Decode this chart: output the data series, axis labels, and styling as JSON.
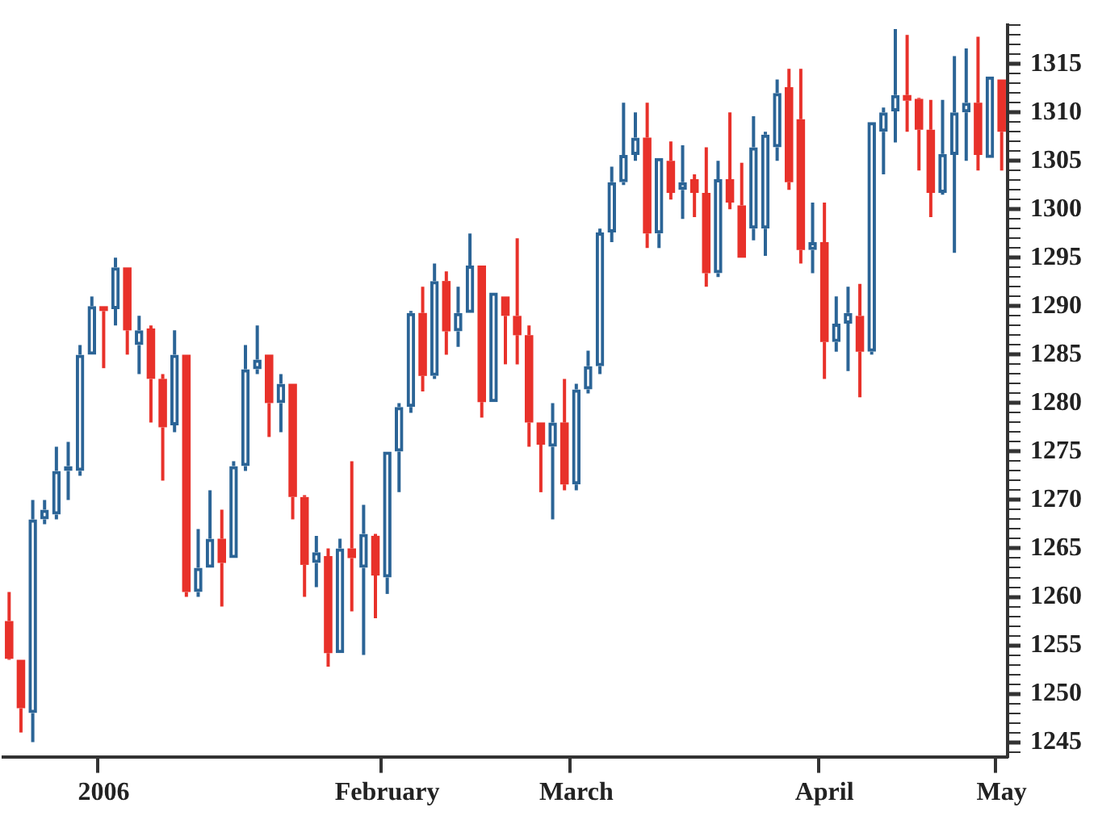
{
  "chart_data": {
    "type": "candlestick",
    "categories": [
      null,
      null,
      null,
      null,
      null,
      null,
      null,
      null,
      "2006",
      null,
      null,
      null,
      null,
      null,
      null,
      null,
      null,
      null,
      null,
      null,
      null,
      null,
      null,
      null,
      null,
      null,
      null,
      null,
      null,
      null,
      null,
      null,
      "February",
      null,
      null,
      null,
      null,
      null,
      null,
      null,
      null,
      null,
      null,
      null,
      null,
      null,
      null,
      null,
      "March",
      null,
      null,
      null,
      null,
      null,
      null,
      null,
      null,
      null,
      null,
      null,
      null,
      null,
      null,
      null,
      null,
      null,
      null,
      null,
      null,
      "April",
      null,
      null,
      null,
      null,
      null,
      null,
      null,
      null,
      null,
      null,
      null,
      null,
      null,
      null,
      "May"
    ],
    "ohlc": [
      [
        1257.5,
        1260.5,
        1253.5,
        1253.6
      ],
      [
        1253.5,
        1253.5,
        1246,
        1248.5
      ],
      [
        1248,
        1270,
        1245,
        1268
      ],
      [
        1268,
        1270,
        1267.5,
        1269
      ],
      [
        1268.5,
        1275.5,
        1268,
        1273
      ],
      [
        1273,
        1276,
        1270,
        1273.5
      ],
      [
        1273,
        1286,
        1272.5,
        1285
      ],
      [
        1285,
        1291,
        1285,
        1290
      ],
      [
        1290,
        1290,
        1283.6,
        1289.5
      ],
      [
        1289.7,
        1295,
        1288,
        1294
      ],
      [
        1294,
        1294,
        1285,
        1287.5
      ],
      [
        1286,
        1289,
        1283,
        1287.5
      ],
      [
        1287.7,
        1288,
        1278,
        1282.5
      ],
      [
        1282.5,
        1283,
        1272,
        1277.5
      ],
      [
        1277.7,
        1287.5,
        1277,
        1285
      ],
      [
        1285,
        1285,
        1260,
        1260.5
      ],
      [
        1260.5,
        1267,
        1260,
        1263
      ],
      [
        1263,
        1271,
        1263,
        1266
      ],
      [
        1266,
        1269,
        1259,
        1263.5
      ],
      [
        1264,
        1274,
        1264,
        1273.5
      ],
      [
        1273.5,
        1286,
        1273,
        1283.5
      ],
      [
        1283.5,
        1288,
        1283,
        1284.5
      ],
      [
        1285,
        1285,
        1276.5,
        1280
      ],
      [
        1280,
        1283,
        1277,
        1282
      ],
      [
        1282,
        1282,
        1268,
        1270.3
      ],
      [
        1270.3,
        1270.5,
        1260,
        1263.3
      ],
      [
        1263.5,
        1266.3,
        1261,
        1264.6
      ],
      [
        1264.2,
        1265,
        1252.8,
        1254.2
      ],
      [
        1254.2,
        1266,
        1254.2,
        1265
      ],
      [
        1265,
        1274,
        1258.5,
        1264
      ],
      [
        1263,
        1269.5,
        1254,
        1266.5
      ],
      [
        1266.3,
        1266.5,
        1257.8,
        1262.2
      ],
      [
        1262,
        1275,
        1260.3,
        1275
      ],
      [
        1275,
        1280,
        1270.8,
        1279.6
      ],
      [
        1279.6,
        1289.5,
        1279,
        1289.3
      ],
      [
        1289.3,
        1292,
        1281.2,
        1282.8
      ],
      [
        1282.8,
        1294.4,
        1282.5,
        1292.6
      ],
      [
        1292.6,
        1293.6,
        1285,
        1287.4
      ],
      [
        1287.4,
        1292,
        1285.8,
        1289.3
      ],
      [
        1289.3,
        1297.5,
        1289.3,
        1294.2
      ],
      [
        1294.2,
        1294.2,
        1278.5,
        1280.1
      ],
      [
        1280.1,
        1291.4,
        1280.1,
        1291.4
      ],
      [
        1291,
        1291,
        1284,
        1289
      ],
      [
        1289,
        1297,
        1284,
        1287
      ],
      [
        1287,
        1288,
        1275.5,
        1278
      ],
      [
        1278,
        1278,
        1270.8,
        1275.7
      ],
      [
        1275.5,
        1280,
        1268,
        1278
      ],
      [
        1278,
        1282.5,
        1271,
        1271.6
      ],
      [
        1271.6,
        1282,
        1271,
        1281.4
      ],
      [
        1281.4,
        1285.4,
        1281,
        1283.8
      ],
      [
        1283.8,
        1298,
        1283,
        1297.6
      ],
      [
        1297.6,
        1304.4,
        1296.6,
        1302.8
      ],
      [
        1302.8,
        1311,
        1302.5,
        1305.6
      ],
      [
        1305.6,
        1310,
        1305,
        1307.4
      ],
      [
        1307.4,
        1311,
        1296,
        1297.5
      ],
      [
        1297.5,
        1305.3,
        1296,
        1305.3
      ],
      [
        1305,
        1307,
        1301,
        1301.7
      ],
      [
        1302,
        1306.6,
        1299,
        1302.8
      ],
      [
        1303.1,
        1303.6,
        1299.2,
        1301.7
      ],
      [
        1301.7,
        1306.4,
        1292,
        1293.4
      ],
      [
        1293.4,
        1305,
        1293,
        1303.1
      ],
      [
        1303.1,
        1310,
        1300,
        1300.7
      ],
      [
        1300.4,
        1304.8,
        1295,
        1295
      ],
      [
        1298,
        1309.6,
        1296.8,
        1306.4
      ],
      [
        1298,
        1308,
        1295.2,
        1307.7
      ],
      [
        1306.4,
        1313.4,
        1305,
        1312
      ],
      [
        1312.6,
        1314.5,
        1302,
        1302.8
      ],
      [
        1309.3,
        1314.5,
        1294.4,
        1295.8
      ],
      [
        1295.8,
        1300.7,
        1293.4,
        1296.6
      ],
      [
        1296.6,
        1300.7,
        1282.5,
        1286.3
      ],
      [
        1286.3,
        1291,
        1285.3,
        1288.2
      ],
      [
        1288.2,
        1292,
        1283.3,
        1289.3
      ],
      [
        1289,
        1292.3,
        1280.6,
        1285.3
      ],
      [
        1285.3,
        1309,
        1285,
        1309
      ],
      [
        1308,
        1310.5,
        1303.6,
        1310
      ],
      [
        1310.1,
        1318.6,
        1306.9,
        1311.8
      ],
      [
        1311.8,
        1318,
        1308,
        1311.2
      ],
      [
        1311.4,
        1311.5,
        1304,
        1308.2
      ],
      [
        1308.2,
        1311.3,
        1299.2,
        1301.7
      ],
      [
        1301.7,
        1311.3,
        1301.5,
        1305.7
      ],
      [
        1305.6,
        1315.8,
        1295.5,
        1310
      ],
      [
        1310,
        1316.6,
        1305,
        1311
      ],
      [
        1311,
        1317.8,
        1304,
        1305.6
      ],
      [
        1305.3,
        1313.7,
        1305.3,
        1313.7
      ],
      [
        1313.4,
        1313.4,
        1304,
        1308
      ]
    ],
    "colors": [
      "#e8312a",
      "#e8312a",
      "#2b6496",
      "#2b6496",
      "#2b6496",
      "#2b6496",
      "#2b6496",
      "#2b6496",
      "#e8312a",
      "#2b6496",
      "#e8312a",
      "#2b6496",
      "#e8312a",
      "#e8312a",
      "#2b6496",
      "#e8312a",
      "#2b6496",
      "#2b6496",
      "#e8312a",
      "#2b6496",
      "#2b6496",
      "#2b6496",
      "#e8312a",
      "#2b6496",
      "#e8312a",
      "#e8312a",
      "#2b6496",
      "#e8312a",
      "#2b6496",
      "#e8312a",
      "#2b6496",
      "#e8312a",
      "#2b6496",
      "#2b6496",
      "#2b6496",
      "#e8312a",
      "#2b6496",
      "#e8312a",
      "#2b6496",
      "#2b6496",
      "#e8312a",
      "#2b6496",
      "#e8312a",
      "#e8312a",
      "#e8312a",
      "#e8312a",
      "#2b6496",
      "#e8312a",
      "#2b6496",
      "#2b6496",
      "#2b6496",
      "#2b6496",
      "#2b6496",
      "#2b6496",
      "#e8312a",
      "#2b6496",
      "#e8312a",
      "#2b6496",
      "#e8312a",
      "#e8312a",
      "#2b6496",
      "#e8312a",
      "#e8312a",
      "#2b6496",
      "#2b6496",
      "#2b6496",
      "#e8312a",
      "#e8312a",
      "#2b6496",
      "#e8312a",
      "#2b6496",
      "#2b6496",
      "#e8312a",
      "#2b6496",
      "#2b6496",
      "#2b6496",
      "#e8312a",
      "#e8312a",
      "#e8312a",
      "#2b6496",
      "#2b6496",
      "#2b6496",
      "#e8312a",
      "#2b6496",
      "#e8312a"
    ],
    "ylim": [
      1243.5,
      1319
    ],
    "yticks": [
      {
        "value": 1244,
        "label": null
      },
      1245,
      {
        "value": 1246,
        "label": null
      },
      {
        "value": 1247,
        "label": null
      },
      {
        "value": 1248,
        "label": null
      },
      {
        "value": 1249,
        "label": null
      },
      1250,
      {
        "value": 1251,
        "label": null
      },
      {
        "value": 1252,
        "label": null
      },
      {
        "value": 1253,
        "label": null
      },
      {
        "value": 1254,
        "label": null
      },
      1255,
      {
        "value": 1256,
        "label": null
      },
      {
        "value": 1257,
        "label": null
      },
      {
        "value": 1258,
        "label": null
      },
      {
        "value": 1259,
        "label": null
      },
      1260,
      {
        "value": 1261,
        "label": null
      },
      {
        "value": 1262,
        "label": null
      },
      {
        "value": 1263,
        "label": null
      },
      {
        "value": 1264,
        "label": null
      },
      1265,
      {
        "value": 1266,
        "label": null
      },
      {
        "value": 1267,
        "label": null
      },
      {
        "value": 1268,
        "label": null
      },
      {
        "value": 1269,
        "label": null
      },
      1270,
      {
        "value": 1271,
        "label": null
      },
      {
        "value": 1272,
        "label": null
      },
      {
        "value": 1273,
        "label": null
      },
      {
        "value": 1274,
        "label": null
      },
      1275,
      {
        "value": 1276,
        "label": null
      },
      {
        "value": 1277,
        "label": null
      },
      {
        "value": 1278,
        "label": null
      },
      {
        "value": 1279,
        "label": null
      },
      1280,
      {
        "value": 1281,
        "label": null
      },
      {
        "value": 1282,
        "label": null
      },
      {
        "value": 1283,
        "label": null
      },
      {
        "value": 1284,
        "label": null
      },
      1285,
      {
        "value": 1286,
        "label": null
      },
      {
        "value": 1287,
        "label": null
      },
      {
        "value": 1288,
        "label": null
      },
      {
        "value": 1289,
        "label": null
      },
      1290,
      {
        "value": 1291,
        "label": null
      },
      {
        "value": 1292,
        "label": null
      },
      {
        "value": 1293,
        "label": null
      },
      {
        "value": 1294,
        "label": null
      },
      1295,
      {
        "value": 1296,
        "label": null
      },
      {
        "value": 1297,
        "label": null
      },
      {
        "value": 1298,
        "label": null
      },
      {
        "value": 1299,
        "label": null
      },
      1300,
      {
        "value": 1301,
        "label": null
      },
      {
        "value": 1302,
        "label": null
      },
      {
        "value": 1303,
        "label": null
      },
      {
        "value": 1304,
        "label": null
      },
      1305,
      {
        "value": 1306,
        "label": null
      },
      {
        "value": 1307,
        "label": null
      },
      {
        "value": 1308,
        "label": null
      },
      {
        "value": 1309,
        "label": null
      },
      1310,
      {
        "value": 1311,
        "label": null
      },
      {
        "value": 1312,
        "label": null
      },
      {
        "value": 1313,
        "label": null
      },
      {
        "value": 1314,
        "label": null
      },
      1315,
      {
        "value": 1316,
        "label": null
      },
      {
        "value": 1317,
        "label": null
      },
      {
        "value": 1318,
        "label": null
      },
      {
        "value": 1319,
        "label": null
      }
    ]
  }
}
